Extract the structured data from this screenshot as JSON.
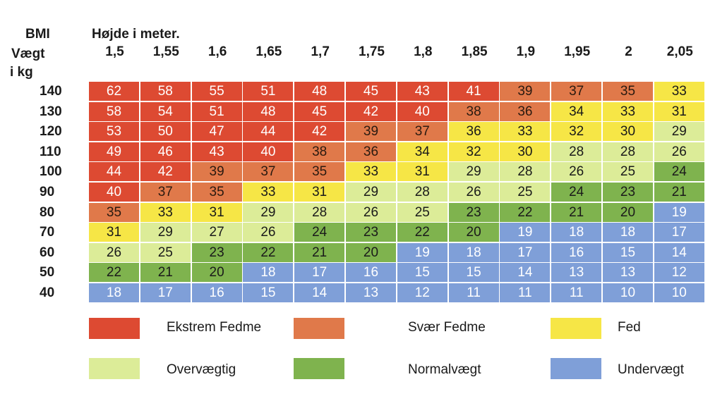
{
  "chart_data": {
    "type": "table",
    "corner_labels": {
      "bmi": "BMI",
      "weight": "Vægt",
      "weight_unit": "i kg"
    },
    "height_title": "Højde i meter.",
    "heights": [
      "1,5",
      "1,55",
      "1,6",
      "1,65",
      "1,7",
      "1,75",
      "1,8",
      "1,85",
      "1,9",
      "1,95",
      "2",
      "2,05"
    ],
    "weights": [
      "140",
      "130",
      "120",
      "110",
      "100",
      "90",
      "80",
      "70",
      "60",
      "50",
      "40"
    ],
    "values": [
      [
        62,
        58,
        55,
        51,
        48,
        45,
        43,
        41,
        39,
        37,
        35,
        33
      ],
      [
        58,
        54,
        51,
        48,
        45,
        42,
        40,
        38,
        36,
        34,
        33,
        31
      ],
      [
        53,
        50,
        47,
        44,
        42,
        39,
        37,
        36,
        33,
        32,
        30,
        29
      ],
      [
        49,
        46,
        43,
        40,
        38,
        36,
        34,
        32,
        30,
        28,
        28,
        26
      ],
      [
        44,
        42,
        39,
        37,
        35,
        33,
        31,
        29,
        28,
        26,
        25,
        24
      ],
      [
        40,
        37,
        35,
        33,
        31,
        29,
        28,
        26,
        25,
        24,
        23,
        21
      ],
      [
        35,
        33,
        31,
        29,
        28,
        26,
        25,
        23,
        22,
        21,
        20,
        19
      ],
      [
        31,
        29,
        27,
        26,
        24,
        23,
        22,
        20,
        19,
        18,
        18,
        17
      ],
      [
        26,
        25,
        23,
        22,
        21,
        20,
        19,
        18,
        17,
        16,
        15,
        14
      ],
      [
        22,
        21,
        20,
        18,
        17,
        16,
        15,
        15,
        14,
        13,
        13,
        12
      ],
      [
        18,
        17,
        16,
        15,
        14,
        13,
        12,
        11,
        11,
        11,
        10,
        10
      ]
    ],
    "categories": [
      {
        "label": "Ekstrem Fedme",
        "color": "#dd4a32",
        "text_color": "#ffffff"
      },
      {
        "label": "Svær Fedme",
        "color": "#e0794a",
        "text_color": "#2a1a10"
      },
      {
        "label": "Fed",
        "color": "#f6e646",
        "text_color": "#1a1a1a"
      },
      {
        "label": "Overvægtig",
        "color": "#dcec98",
        "text_color": "#1a1a1a"
      },
      {
        "label": "Normalvægt",
        "color": "#7fb34e",
        "text_color": "#1a1a1a"
      },
      {
        "label": "Undervægt",
        "color": "#7f9fd8",
        "text_color": "#ffffff"
      }
    ]
  }
}
